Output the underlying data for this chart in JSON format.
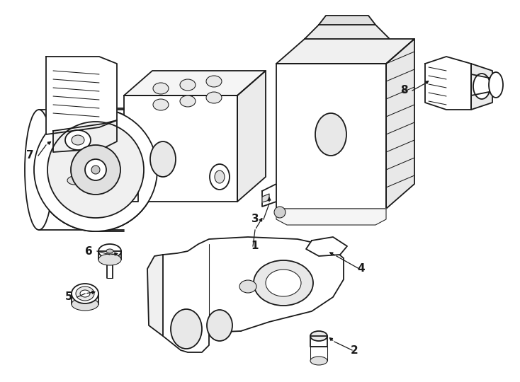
{
  "bg_color": "#ffffff",
  "lc": "#1a1a1a",
  "lw": 1.3,
  "tlw": 0.75,
  "fs": 734,
  "fh": 540,
  "dpi": 100
}
